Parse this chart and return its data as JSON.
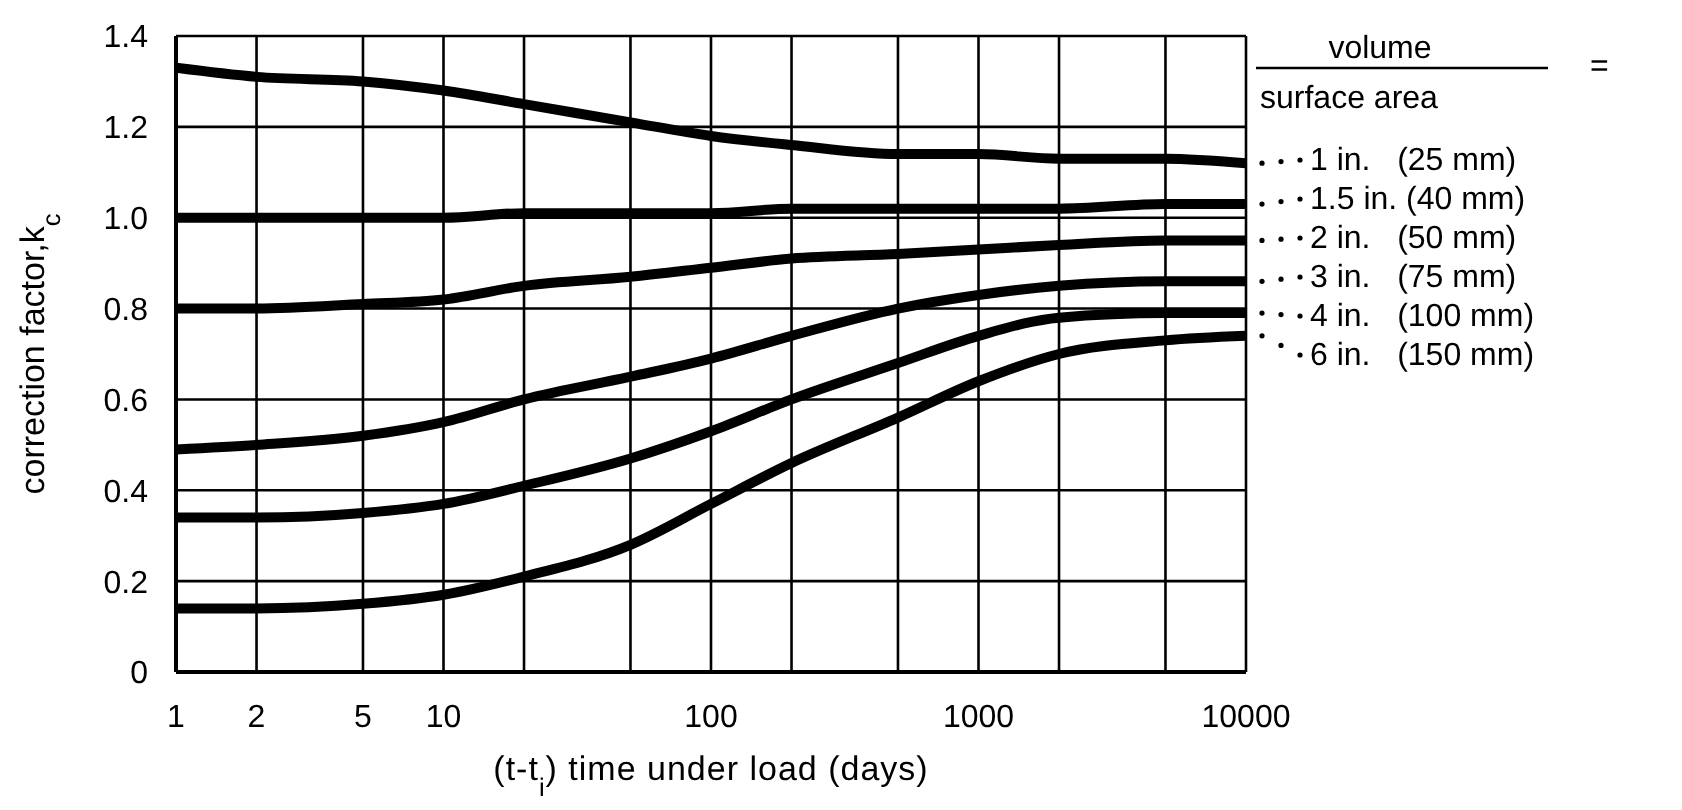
{
  "chart_data": {
    "type": "line",
    "xlabel": "(t-t$_{i}$) time under load (days)",
    "ylabel": "correction factor,k$_{c}$",
    "legend_title": "volume surface area =",
    "legend": "right",
    "x": [
      1,
      2,
      5,
      10,
      20,
      50,
      100,
      200,
      500,
      1000,
      2000,
      5000,
      10000
    ],
    "log": "x",
    "xlim": [
      1,
      10000
    ],
    "xticks": [
      1,
      2,
      5,
      10,
      {
        "value": 20,
        "label": null
      },
      {
        "value": 50,
        "label": null
      },
      100,
      {
        "value": 200,
        "label": null
      },
      {
        "value": 500,
        "label": null
      },
      1000,
      {
        "value": 2000,
        "label": null
      },
      {
        "value": 5000,
        "label": null
      },
      10000
    ],
    "ylim": [
      0,
      1.4
    ],
    "yticks": [
      0,
      0.2,
      0.4,
      0.6,
      0.8,
      {
        "value": 1,
        "label": "1.0"
      },
      1.2,
      1.4
    ],
    "grid": true,
    "marker": "none",
    "line_style": "solid",
    "series": [
      {
        "name": "1 in.   (25 mm)",
        "color": "#000000",
        "values": [
          1.33,
          1.31,
          1.3,
          1.28,
          1.25,
          1.21,
          1.18,
          1.16,
          1.14,
          1.14,
          1.13,
          1.13,
          1.12
        ]
      },
      {
        "name": "1.5 in. (40 mm)",
        "color": "#000000",
        "values": [
          1.0,
          1.0,
          1.0,
          1.0,
          1.01,
          1.01,
          1.01,
          1.02,
          1.02,
          1.02,
          1.02,
          1.03,
          1.03
        ]
      },
      {
        "name": "2 in.   (50 mm)",
        "color": "#000000",
        "values": [
          0.8,
          0.8,
          0.81,
          0.82,
          0.85,
          0.87,
          0.89,
          0.91,
          0.92,
          0.93,
          0.94,
          0.95,
          0.95
        ]
      },
      {
        "name": "3 in.   (75 mm)",
        "color": "#000000",
        "values": [
          0.49,
          0.5,
          0.52,
          0.55,
          0.6,
          0.65,
          0.69,
          0.74,
          0.8,
          0.83,
          0.85,
          0.86,
          0.86
        ]
      },
      {
        "name": "4 in.   (100 mm)",
        "color": "#000000",
        "values": [
          0.34,
          0.34,
          0.35,
          0.37,
          0.41,
          0.47,
          0.53,
          0.6,
          0.68,
          0.74,
          0.78,
          0.79,
          0.79
        ]
      },
      {
        "name": "6 in.   (150 mm)",
        "color": "#000000",
        "values": [
          0.14,
          0.14,
          0.15,
          0.17,
          0.21,
          0.28,
          0.37,
          0.46,
          0.56,
          0.64,
          0.7,
          0.73,
          0.74
        ]
      }
    ]
  }
}
